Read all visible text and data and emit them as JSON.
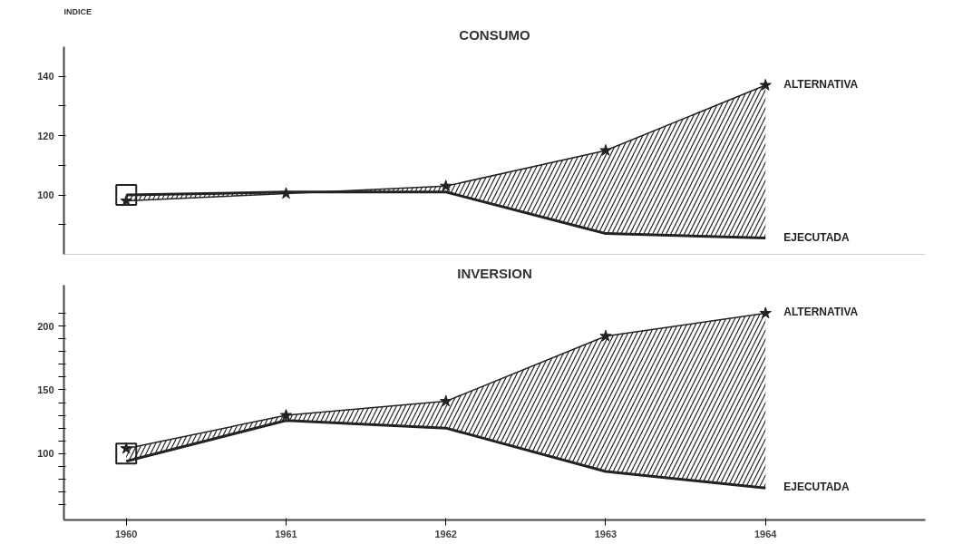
{
  "chart_data": [
    {
      "type": "line",
      "title": "CONSUMO",
      "ylabel": "INDICE",
      "x": [
        1960,
        1961,
        1962,
        1963,
        1964
      ],
      "xlim": [
        1959.61,
        1965.0
      ],
      "ylim": [
        80,
        150
      ],
      "yticks": [
        {
          "value": 90,
          "label": null
        },
        100,
        {
          "value": 110,
          "label": null
        },
        120,
        {
          "value": 130,
          "label": null
        },
        140
      ],
      "tick_labels": "y",
      "grid": false,
      "series": [
        {
          "name": "ALTERNATIVA",
          "color": "#222222",
          "marker": "star",
          "values": [
            98,
            100.5,
            103,
            115,
            137
          ],
          "lower": [
            100,
            101,
            101,
            87,
            85.5
          ],
          "upper": [
            98,
            100.5,
            103,
            115,
            137
          ]
        },
        {
          "name": "EJECUTADA",
          "color": "#222222",
          "marker": "none",
          "values": [
            100,
            101,
            101,
            87,
            85.5
          ]
        },
        {
          "type": "scatter",
          "color": "#222222",
          "marker": "square",
          "x": [
            1960
          ],
          "values": [
            100
          ]
        }
      ]
    },
    {
      "type": "line",
      "title": "INVERSION",
      "x": [
        1960,
        1961,
        1962,
        1963,
        1964
      ],
      "xlim": [
        1959.61,
        1965.0
      ],
      "xticks": [
        1960,
        1961,
        1962,
        1963,
        1964
      ],
      "ylim": [
        48,
        232
      ],
      "yticks": [
        {
          "value": 60,
          "label": null
        },
        {
          "value": 70,
          "label": null
        },
        {
          "value": 80,
          "label": null
        },
        {
          "value": 90,
          "label": null
        },
        100,
        {
          "value": 110,
          "label": null
        },
        {
          "value": 120,
          "label": null
        },
        {
          "value": 130,
          "label": null
        },
        {
          "value": 140,
          "label": null
        },
        150,
        {
          "value": 160,
          "label": null
        },
        {
          "value": 170,
          "label": null
        },
        {
          "value": 180,
          "label": null
        },
        {
          "value": 190,
          "label": null
        },
        200,
        {
          "value": 210,
          "label": null
        }
      ],
      "grid": false,
      "series": [
        {
          "name": "ALTERNATIVA",
          "color": "#222222",
          "marker": "star",
          "values": [
            104,
            130,
            141,
            192,
            210
          ],
          "lower": [
            94,
            126,
            120,
            86,
            73
          ],
          "upper": [
            104,
            130,
            141,
            192,
            210
          ]
        },
        {
          "name": "EJECUTADA",
          "color": "#222222",
          "marker": "none",
          "values": [
            94,
            126,
            120,
            86,
            73
          ]
        },
        {
          "type": "scatter",
          "color": "#222222",
          "marker": "square",
          "x": [
            1960
          ],
          "values": [
            100
          ]
        }
      ]
    }
  ]
}
